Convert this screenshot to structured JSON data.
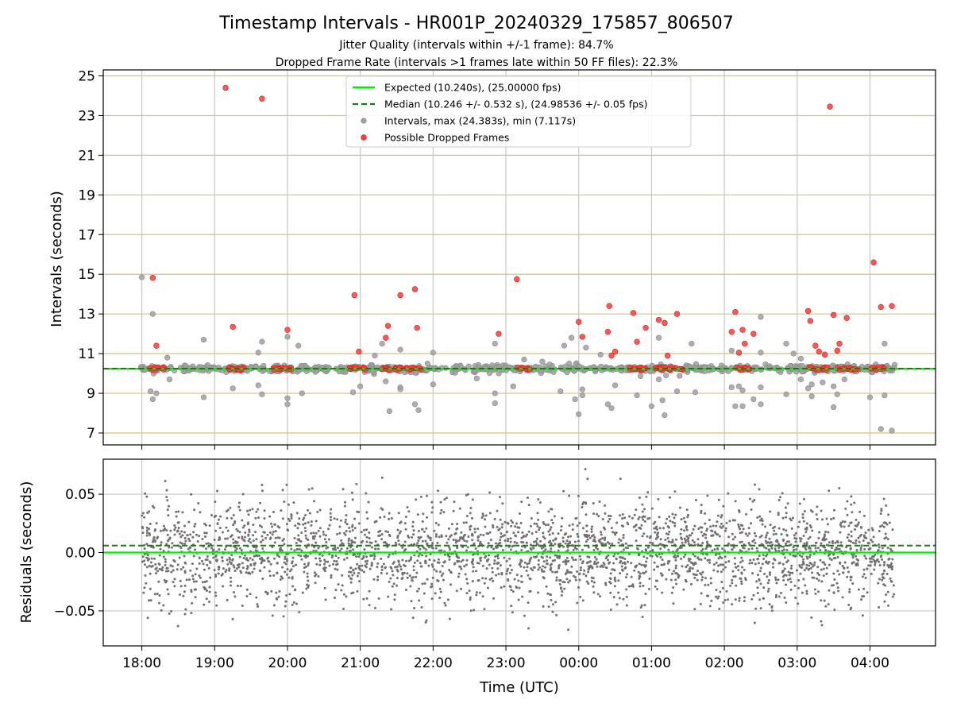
{
  "title": "Timestamp Intervals - HR001P_20240329_175857_806507",
  "subtitle_1": "Jitter Quality (intervals within +/-1 frame): 84.7%",
  "subtitle_2": "Dropped Frame Rate (intervals >1 frames late within 50 FF files): 22.3%",
  "colors": {
    "expected": "#00ee00",
    "median": "#1a7a1a",
    "intervals": "#a0a0a0",
    "dropped": "#ff3b3b",
    "residuals": "#707070",
    "hgrid_top": "#d6c27a",
    "grid": "#c8c8c8"
  },
  "chart_data": [
    {
      "type": "scatter",
      "ylabel": "Intervals (seconds)",
      "xlabel": "",
      "ylim": [
        6.4,
        25.3
      ],
      "yticks": [
        7,
        9,
        11,
        13,
        15,
        17,
        19,
        21,
        23,
        25
      ],
      "xticks": [
        "18:00",
        "19:00",
        "20:00",
        "21:00",
        "22:00",
        "23:00",
        "00:00",
        "01:00",
        "02:00",
        "03:00",
        "04:00"
      ],
      "x_unit": "hours since 18:00 UTC",
      "xlim": [
        -0.53,
        10.9
      ],
      "grid": "horizontal gold lines, vertical gray lines",
      "legend_position": "upper center",
      "legend": [
        "Expected (10.240s), (25.00000 fps)",
        "Median (10.246 +/- 0.532 s), (24.98536 +/- 0.05 fps)",
        "Intervals, max (24.383s), min (7.117s)",
        "Possible Dropped Frames"
      ],
      "expected_line": 10.24,
      "median_line": 10.246,
      "dropped_frames_points": [
        [
          0.15,
          14.82
        ],
        [
          0.2,
          11.4
        ],
        [
          1.25,
          12.35
        ],
        [
          1.15,
          24.4
        ],
        [
          1.65,
          23.85
        ],
        [
          2.0,
          12.2
        ],
        [
          2.92,
          13.95
        ],
        [
          2.98,
          11.1
        ],
        [
          3.35,
          11.8
        ],
        [
          3.38,
          12.4
        ],
        [
          3.55,
          13.95
        ],
        [
          3.75,
          14.25
        ],
        [
          3.78,
          12.3
        ],
        [
          5.15,
          14.75
        ],
        [
          4.9,
          12.0
        ],
        [
          6.0,
          12.6
        ],
        [
          6.05,
          11.85
        ],
        [
          6.42,
          13.4
        ],
        [
          6.4,
          12.1
        ],
        [
          6.45,
          10.9
        ],
        [
          6.5,
          11.1
        ],
        [
          6.75,
          13.05
        ],
        [
          6.8,
          11.6
        ],
        [
          6.92,
          12.3
        ],
        [
          7.1,
          12.7
        ],
        [
          7.18,
          12.55
        ],
        [
          7.22,
          10.9
        ],
        [
          7.35,
          13.0
        ],
        [
          8.1,
          12.1
        ],
        [
          8.15,
          13.1
        ],
        [
          8.2,
          11.05
        ],
        [
          8.25,
          12.2
        ],
        [
          8.28,
          11.5
        ],
        [
          8.4,
          12.0
        ],
        [
          9.15,
          13.15
        ],
        [
          9.18,
          12.65
        ],
        [
          9.25,
          11.4
        ],
        [
          9.3,
          11.1
        ],
        [
          9.38,
          10.95
        ],
        [
          9.45,
          23.45
        ],
        [
          9.5,
          12.95
        ],
        [
          9.55,
          11.15
        ],
        [
          9.58,
          11.5
        ],
        [
          9.68,
          12.8
        ],
        [
          10.05,
          15.6
        ],
        [
          10.15,
          13.35
        ],
        [
          10.3,
          13.4
        ]
      ],
      "dropped_frame_clusters_at_median": [
        [
          0.1,
          0.32
        ],
        [
          1.15,
          1.45
        ],
        [
          1.75,
          2.05
        ],
        [
          2.85,
          3.1
        ],
        [
          3.3,
          3.85
        ],
        [
          5.15,
          5.35
        ],
        [
          6.7,
          7.45
        ],
        [
          8.15,
          8.35
        ],
        [
          9.15,
          9.45
        ],
        [
          9.55,
          9.85
        ],
        [
          10.0,
          10.2
        ]
      ],
      "gray_outliers": [
        [
          0.0,
          14.85
        ],
        [
          0.15,
          13.0
        ],
        [
          0.12,
          9.1
        ],
        [
          0.15,
          8.7
        ],
        [
          0.2,
          9.0
        ],
        [
          0.35,
          10.8
        ],
        [
          0.38,
          9.7
        ],
        [
          0.85,
          11.7
        ],
        [
          0.85,
          8.8
        ],
        [
          1.25,
          9.25
        ],
        [
          1.6,
          11.05
        ],
        [
          1.65,
          11.6
        ],
        [
          1.6,
          9.4
        ],
        [
          1.65,
          8.95
        ],
        [
          2.0,
          11.85
        ],
        [
          2.15,
          11.4
        ],
        [
          2.0,
          8.75
        ],
        [
          2.0,
          8.45
        ],
        [
          2.2,
          9.0
        ],
        [
          2.9,
          9.05
        ],
        [
          3.0,
          9.35
        ],
        [
          3.2,
          10.9
        ],
        [
          3.3,
          11.5
        ],
        [
          3.35,
          9.6
        ],
        [
          3.4,
          8.1
        ],
        [
          3.55,
          11.2
        ],
        [
          3.55,
          9.3
        ],
        [
          3.55,
          9.2
        ],
        [
          3.75,
          8.45
        ],
        [
          3.8,
          8.15
        ],
        [
          4.0,
          11.05
        ],
        [
          4.0,
          9.45
        ],
        [
          4.6,
          9.75
        ],
        [
          4.85,
          11.5
        ],
        [
          4.85,
          9.0
        ],
        [
          4.85,
          8.5
        ],
        [
          5.1,
          9.35
        ],
        [
          5.25,
          10.7
        ],
        [
          5.5,
          10.6
        ],
        [
          5.8,
          11.4
        ],
        [
          5.75,
          9.1
        ],
        [
          5.9,
          11.8
        ],
        [
          5.95,
          8.7
        ],
        [
          6.0,
          7.95
        ],
        [
          6.1,
          11.3
        ],
        [
          6.05,
          9.2
        ],
        [
          6.05,
          8.9
        ],
        [
          6.3,
          10.95
        ],
        [
          6.4,
          8.45
        ],
        [
          6.45,
          8.25
        ],
        [
          6.5,
          9.4
        ],
        [
          6.8,
          10.2
        ],
        [
          6.8,
          8.9
        ],
        [
          7.0,
          8.35
        ],
        [
          7.1,
          11.8
        ],
        [
          7.1,
          9.7
        ],
        [
          7.15,
          8.65
        ],
        [
          7.18,
          7.9
        ],
        [
          7.2,
          9.9
        ],
        [
          7.35,
          9.1
        ],
        [
          7.55,
          11.5
        ],
        [
          7.6,
          9.05
        ],
        [
          8.1,
          11.15
        ],
        [
          8.1,
          9.3
        ],
        [
          8.15,
          8.35
        ],
        [
          8.2,
          9.35
        ],
        [
          8.25,
          9.15
        ],
        [
          8.25,
          8.35
        ],
        [
          8.4,
          8.7
        ],
        [
          8.5,
          12.85
        ],
        [
          8.5,
          11.05
        ],
        [
          8.5,
          9.3
        ],
        [
          8.5,
          8.45
        ],
        [
          8.85,
          11.5
        ],
        [
          8.85,
          8.95
        ],
        [
          8.95,
          11.0
        ],
        [
          9.05,
          9.7
        ],
        [
          9.05,
          10.75
        ],
        [
          9.15,
          9.25
        ],
        [
          9.2,
          9.45
        ],
        [
          9.2,
          8.85
        ],
        [
          9.35,
          9.55
        ],
        [
          9.5,
          9.35
        ],
        [
          9.5,
          8.3
        ],
        [
          9.55,
          8.95
        ],
        [
          9.65,
          9.7
        ],
        [
          10.0,
          8.8
        ],
        [
          10.15,
          7.2
        ],
        [
          10.2,
          11.5
        ],
        [
          10.2,
          8.9
        ],
        [
          10.3,
          7.12
        ]
      ],
      "band_x_range": [
        -0.05,
        10.35
      ],
      "band_y_range": [
        10.05,
        10.4
      ]
    },
    {
      "type": "scatter",
      "ylabel": "Residuals (seconds)",
      "xlabel": "Time (UTC)",
      "ylim": [
        -0.08,
        0.08
      ],
      "yticks": [
        -0.05,
        0.0,
        0.05
      ],
      "ytick_labels": [
        "−0.05",
        "0.00",
        "0.05"
      ],
      "xticks": [
        "18:00",
        "19:00",
        "20:00",
        "21:00",
        "22:00",
        "23:00",
        "00:00",
        "01:00",
        "02:00",
        "03:00",
        "04:00"
      ],
      "x_unit": "hours since 18:00 UTC",
      "xlim": [
        -0.53,
        10.9
      ],
      "grid": "horizontal and vertical gray lines",
      "expected_line": 0.0,
      "median_line": 0.006,
      "residual_point_count": 3000,
      "residual_spread_sd": 0.022,
      "residual_x_range": [
        0.0,
        10.33
      ]
    }
  ]
}
